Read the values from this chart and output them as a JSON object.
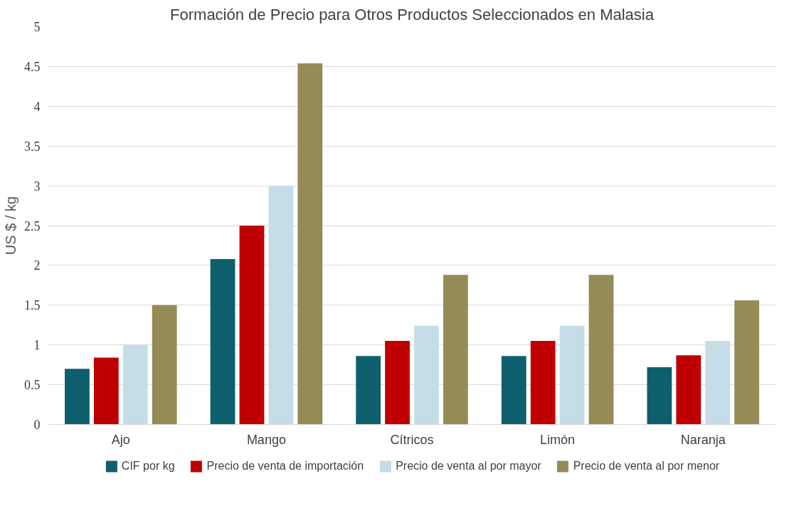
{
  "chart_data": {
    "type": "bar",
    "title": "Formación de Precio para Otros Productos Seleccionados en Malasia",
    "ylabel": "US $ / kg",
    "categories": [
      "Ajo",
      "Mango",
      "Cítricos",
      "Limón",
      "Naranja"
    ],
    "series": [
      {
        "name": "CIF por kg",
        "color": "#0e5f6e",
        "values": [
          0.7,
          2.08,
          0.86,
          0.86,
          0.72
        ]
      },
      {
        "name": "Precio de venta de importación",
        "color": "#c00000",
        "values": [
          0.84,
          2.5,
          1.05,
          1.05,
          0.87
        ]
      },
      {
        "name": "Precio de venta al por mayor",
        "color": "#c5dde6",
        "values": [
          1.0,
          3.0,
          1.24,
          1.24,
          1.05
        ]
      },
      {
        "name": "Precio de venta al por menor",
        "color": "#958b56",
        "values": [
          1.5,
          4.54,
          1.88,
          1.88,
          1.56
        ]
      }
    ],
    "ylim": [
      0,
      5
    ],
    "yticks": [
      0,
      0.5,
      1,
      1.5,
      2,
      2.5,
      3,
      3.5,
      4,
      4.5,
      5
    ],
    "grid": "y",
    "legend": "bottom"
  }
}
